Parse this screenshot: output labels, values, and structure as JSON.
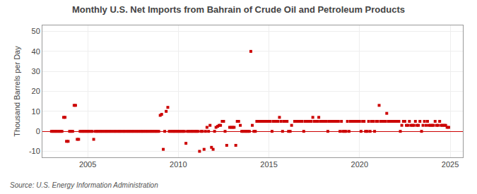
{
  "chart_data": {
    "type": "scatter",
    "title": "Monthly U.S. Net Imports from Bahrain of Crude Oil and Petroleum Products",
    "y_label": "Thousand Barrels per Day",
    "annotations": [
      "Source: U.S. Energy Information Administration"
    ],
    "color": "#cc0000",
    "marker": "square",
    "grid": true,
    "xlim": [
      2002.5,
      2025.7
    ],
    "xticks": [
      2005,
      2010,
      2015,
      2020,
      2025
    ],
    "ylim": [
      -13,
      53
    ],
    "yticks": [
      -10,
      0,
      10,
      20,
      30,
      40,
      50
    ],
    "x": [
      2003.67,
      2003.75,
      2003.83,
      2003.92,
      2004.25,
      2004.33,
      2004.42,
      2004.5,
      2005.33,
      2009.0,
      2009.08,
      2009.17,
      2009.33,
      2009.42,
      2010.42,
      2011.17,
      2011.42,
      2011.58,
      2011.75,
      2011.83,
      2011.92,
      2012.08,
      2012.17,
      2012.25,
      2012.33,
      2012.42,
      2012.5,
      2012.67,
      2012.83,
      2012.92,
      2013.0,
      2013.08,
      2013.17,
      2013.25,
      2013.33,
      2013.42,
      2014.0,
      2014.08,
      2014.33,
      2014.42,
      2014.5,
      2014.58,
      2014.67,
      2014.75,
      2014.83,
      2014.92,
      2015.0,
      2015.08,
      2015.25,
      2015.33,
      2015.42,
      2015.5,
      2015.58,
      2015.67,
      2015.83,
      2015.92,
      2016.0,
      2016.25,
      2016.42,
      2016.5,
      2016.58,
      2016.67,
      2016.75,
      2016.83,
      2017.0,
      2017.08,
      2017.17,
      2017.25,
      2017.33,
      2017.42,
      2017.5,
      2017.58,
      2017.67,
      2017.75,
      2017.83,
      2017.92,
      2018.0,
      2018.08,
      2018.17,
      2018.33,
      2018.42,
      2018.5,
      2018.58,
      2018.67,
      2018.75,
      2018.83,
      2019.0,
      2019.33,
      2019.5,
      2019.58,
      2019.67,
      2019.75,
      2019.83,
      2019.92,
      2020.0,
      2020.17,
      2020.25,
      2020.5,
      2020.67,
      2020.75,
      2020.92,
      2021.0,
      2021.08,
      2021.17,
      2021.25,
      2021.33,
      2021.42,
      2021.5,
      2021.58,
      2021.67,
      2021.75,
      2021.83,
      2021.92,
      2022.0,
      2022.08,
      2022.17,
      2022.33,
      2022.42,
      2022.5,
      2022.58,
      2022.67,
      2022.75,
      2022.83,
      2022.92,
      2023.0,
      2023.08,
      2023.17,
      2023.25,
      2023.33,
      2023.5,
      2023.58,
      2023.67,
      2023.75,
      2023.83,
      2023.92,
      2024.0,
      2024.08,
      2024.17,
      2024.25,
      2024.33,
      2024.42,
      2024.5,
      2024.58,
      2024.67,
      2024.75,
      2024.83,
      2024.92,
      2003.0,
      2003.08,
      2003.17,
      2003.25,
      2003.33,
      2003.42,
      2003.5,
      2003.58,
      2004.0,
      2004.08,
      2004.17,
      2004.58,
      2004.67,
      2004.75,
      2004.83,
      2004.92,
      2005.0,
      2005.08,
      2005.17,
      2005.25,
      2005.42,
      2005.5,
      2005.58,
      2005.67,
      2005.75,
      2005.83,
      2005.92,
      2006.0,
      2006.08,
      2006.17,
      2006.25,
      2006.33,
      2006.42,
      2006.5,
      2006.58,
      2006.67,
      2006.75,
      2006.83,
      2006.92,
      2007.0,
      2007.08,
      2007.17,
      2007.25,
      2007.33,
      2007.42,
      2007.5,
      2007.58,
      2007.67,
      2007.75,
      2007.83,
      2007.92,
      2008.0,
      2008.08,
      2008.17,
      2008.25,
      2008.33,
      2008.42,
      2008.5,
      2008.58,
      2008.67,
      2008.75,
      2008.83,
      2008.92,
      2009.25,
      2009.5,
      2009.58,
      2009.67,
      2009.75,
      2009.83,
      2009.92,
      2010.0,
      2010.08,
      2010.17,
      2010.25,
      2010.33,
      2010.5,
      2010.58,
      2010.67,
      2010.75,
      2010.83,
      2010.92,
      2011.0,
      2011.08,
      2011.25,
      2011.33,
      2011.5,
      2011.67,
      2012.0,
      2012.58,
      2013.5,
      2013.58,
      2013.67,
      2013.75,
      2013.83,
      2013.92,
      2014.17,
      2014.25,
      2015.17,
      2015.75,
      2016.08,
      2016.17,
      2016.92,
      2018.25,
      2018.92,
      2019.08,
      2019.17,
      2019.25,
      2019.42,
      2020.08,
      2020.33,
      2020.42,
      2020.58,
      2020.83,
      2022.25,
      2023.42
    ],
    "values": [
      7.0,
      7.0,
      -5.0,
      -5.0,
      13.0,
      13.0,
      -4.0,
      -4.0,
      -4.0,
      8.0,
      8.5,
      -9.0,
      10.0,
      12.0,
      -6.0,
      -10.0,
      -9.0,
      2.0,
      3.0,
      -8.0,
      -9.0,
      2.0,
      2.5,
      3.0,
      3.0,
      5.0,
      5.0,
      -7.0,
      2.0,
      2.0,
      2.0,
      2.0,
      -7.0,
      5.0,
      5.0,
      3.0,
      40.0,
      3.0,
      5.0,
      5.0,
      5.0,
      5.0,
      5.0,
      5.0,
      5.0,
      5.0,
      5.0,
      5.0,
      5.0,
      5.0,
      5.0,
      5.0,
      7.0,
      5.0,
      5.0,
      5.0,
      5.0,
      3.0,
      5.0,
      5.0,
      5.0,
      5.0,
      5.0,
      5.0,
      5.0,
      5.0,
      5.0,
      5.0,
      5.0,
      7.0,
      5.0,
      5.0,
      5.0,
      7.0,
      5.0,
      5.0,
      5.0,
      5.0,
      5.0,
      5.0,
      5.0,
      5.0,
      5.0,
      5.0,
      5.0,
      5.0,
      5.0,
      5.0,
      5.0,
      5.0,
      5.0,
      5.0,
      5.0,
      5.0,
      5.0,
      5.0,
      5.0,
      5.0,
      5.0,
      5.0,
      5.0,
      5.0,
      13.0,
      5.0,
      5.0,
      5.0,
      5.0,
      9.0,
      5.0,
      5.0,
      5.0,
      5.0,
      5.0,
      5.0,
      5.0,
      5.0,
      3.0,
      5.0,
      5.0,
      3.0,
      3.0,
      5.0,
      3.0,
      3.0,
      3.0,
      5.0,
      3.0,
      3.0,
      5.0,
      3.0,
      5.0,
      3.0,
      5.0,
      3.0,
      3.0,
      3.0,
      3.0,
      5.0,
      3.0,
      3.0,
      5.0,
      3.0,
      3.0,
      3.0,
      3.0,
      2.0,
      2.0,
      0,
      0,
      0,
      0,
      0,
      0,
      0,
      0,
      0,
      0,
      0,
      0,
      0,
      0,
      0,
      0,
      0,
      0,
      0,
      0,
      0,
      0,
      0,
      0,
      0,
      0,
      0,
      0,
      0,
      0,
      0,
      0,
      0,
      0,
      0,
      0,
      0,
      0,
      0,
      0,
      0,
      0,
      0,
      0,
      0,
      0,
      0,
      0,
      0,
      0,
      0,
      0,
      0,
      0,
      0,
      0,
      0,
      0,
      0,
      0,
      0,
      0,
      0,
      0,
      0,
      0,
      0,
      0,
      0,
      0,
      0,
      0,
      0,
      0,
      0,
      0,
      0,
      0,
      0,
      0,
      0,
      0,
      0,
      0,
      0,
      0,
      0,
      0,
      0,
      0,
      0,
      0,
      0,
      0,
      0,
      0,
      0,
      0,
      0,
      0,
      0,
      0,
      0,
      0,
      0,
      0,
      0,
      0,
      0,
      0,
      0,
      0,
      0,
      0,
      0
    ]
  }
}
